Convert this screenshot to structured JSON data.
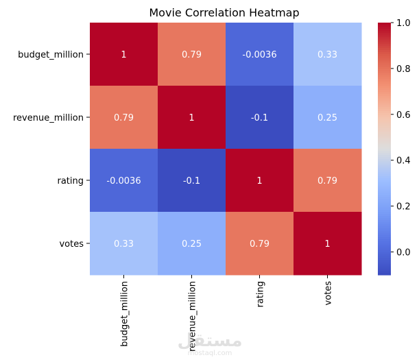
{
  "chart_data": {
    "type": "heatmap",
    "title": "Movie Correlation Heatmap",
    "x_labels": [
      "budget_million",
      "revenue_million",
      "rating",
      "votes"
    ],
    "y_labels": [
      "budget_million",
      "revenue_million",
      "rating",
      "votes"
    ],
    "values": [
      [
        1,
        0.79,
        -0.0036,
        0.33
      ],
      [
        0.79,
        1,
        -0.1,
        0.25
      ],
      [
        -0.0036,
        -0.1,
        1,
        0.79
      ],
      [
        0.33,
        0.25,
        0.79,
        1
      ]
    ],
    "cell_text": [
      [
        "1",
        "0.79",
        "-0.0036",
        "0.33"
      ],
      [
        "0.79",
        "1",
        "-0.1",
        "0.25"
      ],
      [
        "-0.0036",
        "-0.1",
        "1",
        "0.79"
      ],
      [
        "0.33",
        "0.25",
        "0.79",
        "1"
      ]
    ],
    "colormap": "coolwarm",
    "color_range": [
      -0.1,
      1.0
    ],
    "colorbar_ticks": [
      0.0,
      0.2,
      0.4,
      0.6,
      0.8,
      1.0
    ],
    "colorbar_tick_labels": [
      "0.0",
      "0.2",
      "0.4",
      "0.6",
      "0.8",
      "1.0"
    ],
    "annotated": true
  },
  "watermark": {
    "text": "mostaql.com"
  }
}
